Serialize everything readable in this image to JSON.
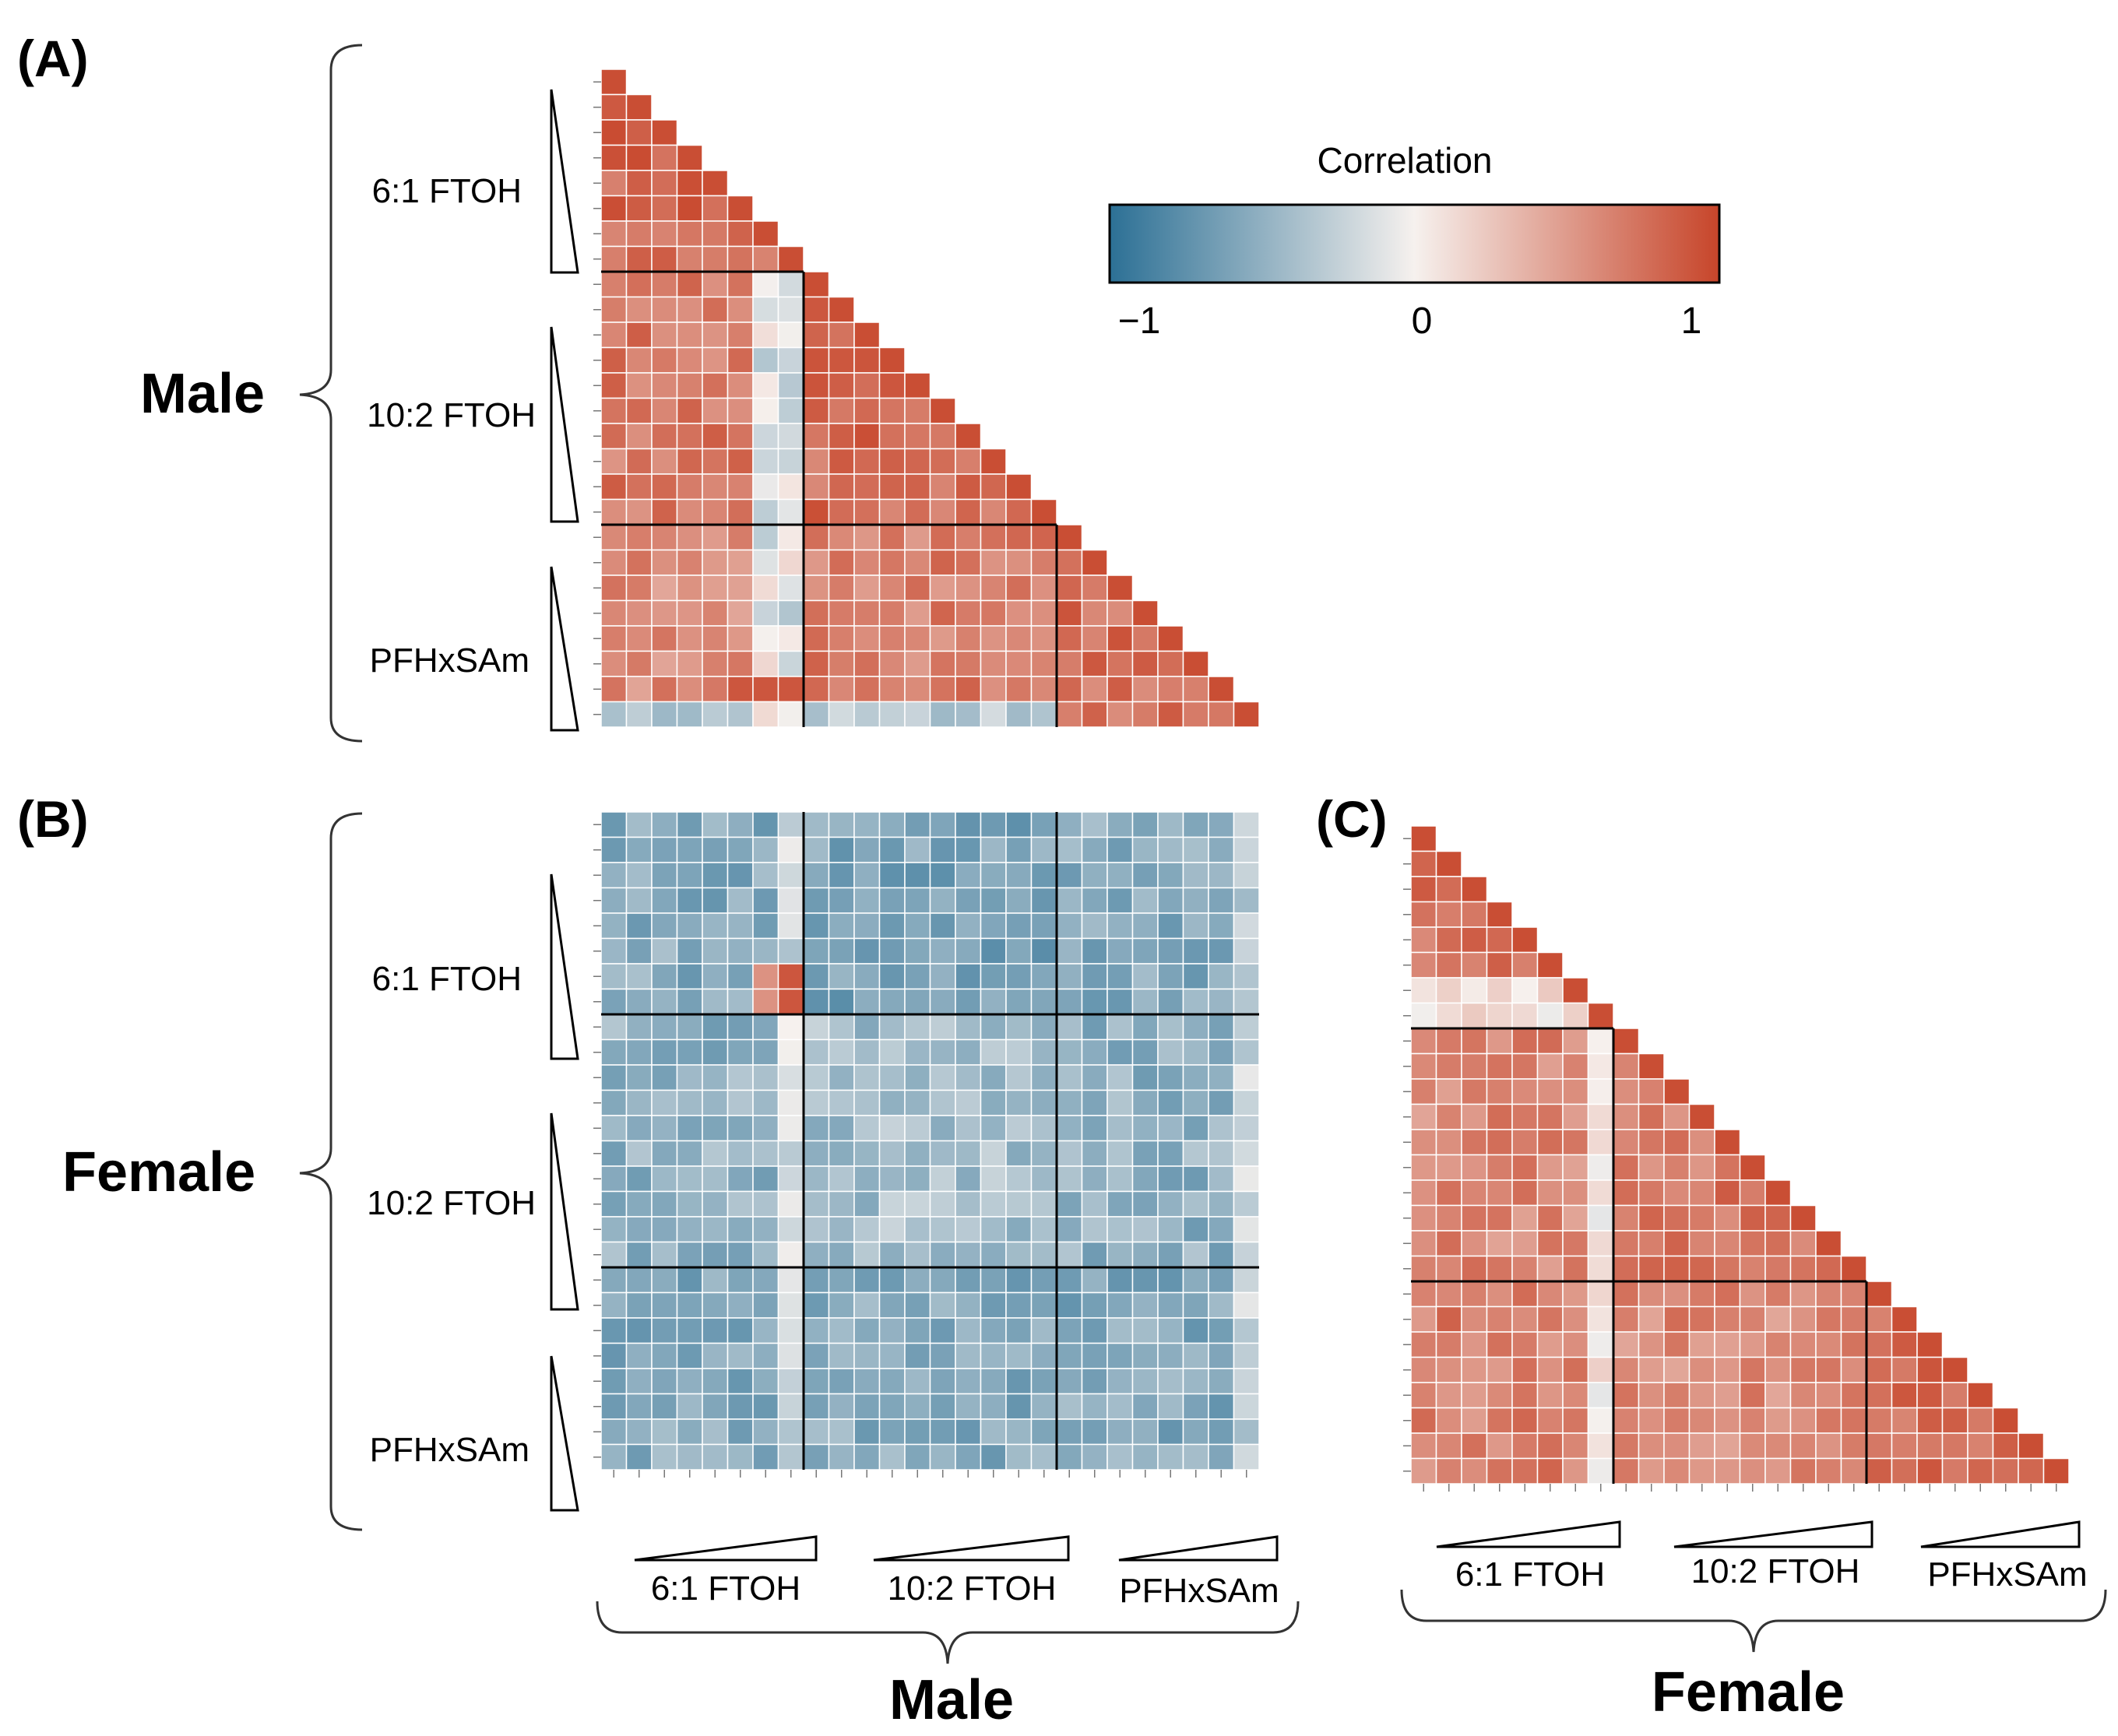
{
  "figure": {
    "panel_a": "(A)",
    "panel_b": "(B)",
    "panel_c": "(C)",
    "male_label": "Male",
    "female_label": "Female",
    "groups": [
      "6:1 FTOH",
      "10:2 FTOH",
      "PFHxSAm"
    ]
  },
  "legend": {
    "title": "Correlation",
    "ticks": [
      "−1",
      "0",
      "1"
    ],
    "colors": {
      "negative": "#2c7095",
      "mid": "#f6f1ee",
      "positive": "#c7452a"
    }
  },
  "chart_data": [
    {
      "panel": "(A)",
      "type": "heatmap",
      "shape": "lower-triangle",
      "subject": "Male",
      "groups": [
        "6:1 FTOH",
        "10:2 FTOH",
        "PFHxSAm"
      ],
      "group_sizes": [
        8,
        10,
        8
      ],
      "value_range": [
        -1,
        1
      ],
      "block_means": [
        [
          0.8,
          null,
          null
        ],
        [
          0.7,
          0.78,
          null
        ],
        [
          0.6,
          0.66,
          0.75
        ]
      ],
      "notes": "low-dose rows of 6:1 FTOH and PFHxSAm show weak/negative correlation (~-0.3) with other samples"
    },
    {
      "panel": "(B)",
      "type": "heatmap",
      "shape": "full",
      "rows_subject": "Female",
      "cols_subject": "Male",
      "groups": [
        "6:1 FTOH",
        "10:2 FTOH",
        "PFHxSAm"
      ],
      "group_sizes": [
        8,
        10,
        8
      ],
      "value_range": [
        -1,
        1
      ],
      "block_means": [
        [
          -0.55,
          -0.6,
          -0.55
        ],
        [
          -0.5,
          -0.4,
          -0.5
        ],
        [
          -0.55,
          -0.55,
          -0.55
        ]
      ],
      "notes": "nearly all cross-sex correlations negative; a few high-dose cells near 0 to +0.5"
    },
    {
      "panel": "(C)",
      "type": "heatmap",
      "shape": "lower-triangle",
      "subject": "Female",
      "groups": [
        "6:1 FTOH",
        "10:2 FTOH",
        "PFHxSAm"
      ],
      "group_sizes": [
        8,
        10,
        8
      ],
      "value_range": [
        -1,
        1
      ],
      "block_means": [
        [
          0.72,
          null,
          null
        ],
        [
          0.62,
          0.7,
          null
        ],
        [
          0.66,
          0.6,
          0.8
        ]
      ],
      "notes": "mostly positive; highest-dose 6:1 FTOH column near 0"
    }
  ]
}
